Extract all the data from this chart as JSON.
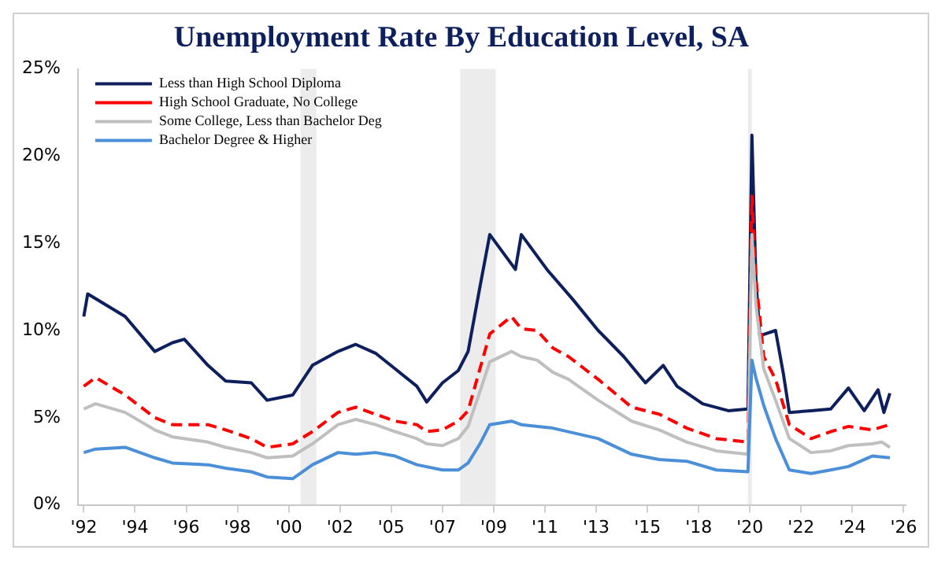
{
  "chart_data": {
    "type": "line",
    "title": "Unemployment Rate By Education Level, SA",
    "xlim": [
      "1991-10",
      "2026-10"
    ],
    "ylim": [
      0,
      25
    ],
    "xticks": [
      {
        "value": "1992-01",
        "label": "'92"
      },
      {
        "value": "1994-03",
        "label": "'94"
      },
      {
        "value": "1996-05",
        "label": "'96"
      },
      {
        "value": "1998-07",
        "label": "'98"
      },
      {
        "value": "2000-09",
        "label": "'00"
      },
      {
        "value": "2002-11",
        "label": "'02"
      },
      {
        "value": "2005-01",
        "label": "'05"
      },
      {
        "value": "2007-03",
        "label": "'07"
      },
      {
        "value": "2009-05",
        "label": "'09"
      },
      {
        "value": "2011-07",
        "label": "'11"
      },
      {
        "value": "2013-09",
        "label": "'13"
      },
      {
        "value": "2015-11",
        "label": "'15"
      },
      {
        "value": "2018-01",
        "label": "'18"
      },
      {
        "value": "2020-03",
        "label": "'20"
      },
      {
        "value": "2022-05",
        "label": "'22"
      },
      {
        "value": "2024-07",
        "label": "'24"
      },
      {
        "value": "2026-09",
        "label": "'26"
      }
    ],
    "yticks": [
      {
        "value": 0,
        "label": "0%"
      },
      {
        "value": 5,
        "label": "5%"
      },
      {
        "value": 10,
        "label": "10%"
      },
      {
        "value": 15,
        "label": "15%"
      },
      {
        "value": 20,
        "label": "20%"
      },
      {
        "value": 25,
        "label": "25%"
      }
    ],
    "grid": false,
    "legend": "top left",
    "marker": "none",
    "bands": [
      {
        "axis": "x",
        "from": "2001-03",
        "to": "2001-11",
        "color": "#ececec"
      },
      {
        "axis": "x",
        "from": "2007-12",
        "to": "2009-06",
        "color": "#ececec"
      },
      {
        "axis": "x",
        "from": "2020-02",
        "to": "2020-04",
        "color": "#ececec"
      }
    ],
    "series": [
      {
        "name": "Less than High School Diploma",
        "color": "#0d1f5c",
        "line_style": "solid",
        "x": [
          "1992-01",
          "1992-03",
          "1993-10",
          "1995-01",
          "1995-10",
          "1996-04",
          "1997-04",
          "1998-01",
          "1999-02",
          "1999-10",
          "2000-11",
          "2001-09",
          "2002-10",
          "2003-07",
          "2004-05",
          "2005-03",
          "2006-02",
          "2006-07",
          "2007-03",
          "2007-11",
          "2008-04",
          "2008-10",
          "2009-03",
          "2010-04",
          "2010-07",
          "2011-08",
          "2012-09",
          "2013-10",
          "2014-11",
          "2015-10",
          "2016-07",
          "2017-02",
          "2018-03",
          "2019-04",
          "2020-02",
          "2020-04",
          "2020-06",
          "2020-08",
          "2021-04",
          "2021-08",
          "2021-11",
          "2022-10",
          "2023-08",
          "2024-05",
          "2025-01",
          "2025-08",
          "2025-11",
          "2026-02"
        ],
        "values": [
          10.8,
          12.1,
          10.8,
          8.8,
          9.3,
          9.5,
          8.0,
          7.1,
          7.0,
          6.0,
          6.3,
          8.0,
          8.8,
          9.2,
          8.7,
          7.8,
          6.8,
          5.9,
          7.0,
          7.7,
          8.8,
          12.5,
          15.5,
          13.5,
          15.5,
          13.5,
          11.8,
          10.0,
          8.5,
          7.0,
          8.0,
          6.8,
          5.8,
          5.4,
          5.5,
          21.2,
          13.0,
          9.7,
          10.0,
          7.5,
          5.3,
          5.4,
          5.5,
          6.7,
          5.4,
          6.6,
          5.3,
          6.4
        ]
      },
      {
        "name": "High School Graduate, No College",
        "color": "#ff0000",
        "line_style": "dashed",
        "x": [
          "1992-01",
          "1992-07",
          "1993-10",
          "1995-01",
          "1995-10",
          "1997-04",
          "1998-01",
          "1999-02",
          "1999-10",
          "2000-11",
          "2001-09",
          "2002-10",
          "2003-07",
          "2004-05",
          "2005-03",
          "2006-02",
          "2006-07",
          "2007-03",
          "2007-11",
          "2008-04",
          "2008-10",
          "2009-03",
          "2010-02",
          "2010-07",
          "2011-03",
          "2011-11",
          "2012-07",
          "2013-10",
          "2015-03",
          "2016-05",
          "2017-07",
          "2018-10",
          "2020-02",
          "2020-04",
          "2020-06",
          "2020-10",
          "2021-04",
          "2021-11",
          "2022-10",
          "2023-08",
          "2024-05",
          "2025-05",
          "2026-02"
        ],
        "values": [
          6.8,
          7.3,
          6.3,
          5.0,
          4.6,
          4.6,
          4.3,
          3.8,
          3.3,
          3.5,
          4.2,
          5.3,
          5.6,
          5.2,
          4.8,
          4.6,
          4.2,
          4.3,
          4.8,
          5.4,
          7.8,
          9.8,
          10.8,
          10.1,
          10.0,
          9.0,
          8.5,
          7.2,
          5.6,
          5.2,
          4.4,
          3.8,
          3.6,
          17.7,
          13.0,
          8.5,
          7.2,
          4.6,
          3.8,
          4.2,
          4.5,
          4.3,
          4.6
        ]
      },
      {
        "name": "Some College, Less than Bachelor Deg",
        "color": "#bfbfbf",
        "line_style": "solid",
        "x": [
          "1992-01",
          "1992-07",
          "1993-10",
          "1995-01",
          "1995-10",
          "1997-04",
          "1998-01",
          "1999-02",
          "1999-10",
          "2000-11",
          "2001-09",
          "2002-10",
          "2003-07",
          "2004-05",
          "2005-03",
          "2006-02",
          "2006-07",
          "2007-03",
          "2007-11",
          "2008-04",
          "2008-10",
          "2009-03",
          "2010-02",
          "2010-07",
          "2011-03",
          "2011-11",
          "2012-07",
          "2013-10",
          "2015-03",
          "2016-05",
          "2017-07",
          "2018-10",
          "2020-02",
          "2020-04",
          "2020-06",
          "2020-10",
          "2021-04",
          "2021-11",
          "2022-10",
          "2023-08",
          "2024-05",
          "2025-05",
          "2025-10",
          "2026-02"
        ],
        "values": [
          5.5,
          5.8,
          5.3,
          4.3,
          3.9,
          3.6,
          3.3,
          3.0,
          2.7,
          2.8,
          3.5,
          4.6,
          4.9,
          4.6,
          4.2,
          3.8,
          3.5,
          3.4,
          3.8,
          4.5,
          6.5,
          8.2,
          8.8,
          8.5,
          8.3,
          7.6,
          7.2,
          6.0,
          4.8,
          4.3,
          3.6,
          3.1,
          2.9,
          15.5,
          11.5,
          7.8,
          6.0,
          3.8,
          3.0,
          3.1,
          3.4,
          3.5,
          3.6,
          3.3
        ]
      },
      {
        "name": "Bachelor Degree & Higher",
        "color": "#4a8fd8",
        "line_style": "solid",
        "x": [
          "1992-01",
          "1992-07",
          "1993-10",
          "1995-01",
          "1995-10",
          "1997-04",
          "1998-01",
          "1999-02",
          "1999-10",
          "2000-11",
          "2001-09",
          "2002-10",
          "2003-07",
          "2004-05",
          "2005-03",
          "2006-02",
          "2007-03",
          "2007-11",
          "2008-04",
          "2008-10",
          "2009-03",
          "2010-02",
          "2010-07",
          "2011-11",
          "2013-10",
          "2015-03",
          "2016-05",
          "2017-07",
          "2018-10",
          "2020-02",
          "2020-04",
          "2020-06",
          "2020-10",
          "2021-04",
          "2021-11",
          "2022-10",
          "2023-08",
          "2024-05",
          "2025-05",
          "2026-02"
        ],
        "values": [
          3.0,
          3.2,
          3.3,
          2.7,
          2.4,
          2.3,
          2.1,
          1.9,
          1.6,
          1.5,
          2.3,
          3.0,
          2.9,
          3.0,
          2.8,
          2.3,
          2.0,
          2.0,
          2.4,
          3.5,
          4.6,
          4.8,
          4.6,
          4.4,
          3.8,
          2.9,
          2.6,
          2.5,
          2.0,
          1.9,
          8.3,
          7.3,
          5.7,
          3.8,
          2.0,
          1.8,
          2.0,
          2.2,
          2.8,
          2.7
        ]
      }
    ]
  }
}
